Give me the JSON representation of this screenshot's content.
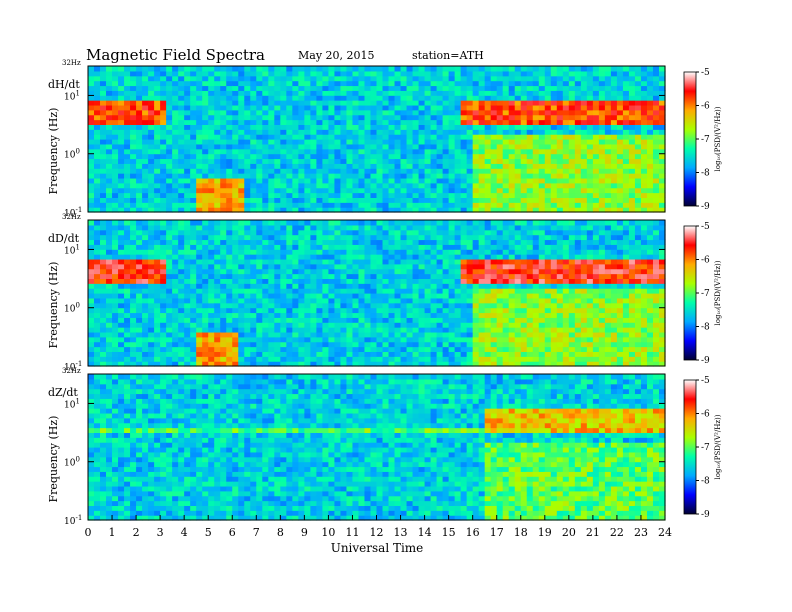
{
  "header": {
    "title": "Magnetic  Field  Spectra",
    "date": "May 20, 2015",
    "station": "station=ATH"
  },
  "chart_data": {
    "type": "heatmap",
    "x_axis": {
      "label": "Universal Time",
      "range": [
        0,
        24
      ],
      "ticks": [
        "0",
        "1",
        "2",
        "3",
        "4",
        "5",
        "6",
        "7",
        "8",
        "9",
        "10",
        "11",
        "12",
        "13",
        "14",
        "15",
        "16",
        "17",
        "18",
        "19",
        "20",
        "21",
        "22",
        "23",
        "24"
      ]
    },
    "y_axis": {
      "label": "Frequency  (Hz)",
      "scale": "log",
      "range": [
        0.1,
        32
      ],
      "top_label": "32Hz",
      "tick_labels": [
        {
          "base": "10",
          "exp": "1"
        },
        {
          "base": "10",
          "exp": "0"
        },
        {
          "base": "10",
          "exp": "-1"
        }
      ]
    },
    "colorbar": {
      "label": "log₁₀(PSD/(V²/Hz))",
      "range": [
        -9,
        -5
      ],
      "ticks": [
        "-5",
        "-6",
        "-7",
        "-8",
        "-9"
      ],
      "colors": [
        "#000033",
        "#0000ff",
        "#00aaff",
        "#00ffaa",
        "#aaff00",
        "#ffaa00",
        "#ff0000",
        "#ffffff"
      ]
    },
    "panels": [
      {
        "component": "dH/dt",
        "bands": [
          {
            "freq_range": [
              10,
              32
            ],
            "level": -8.6
          },
          {
            "freq_range": [
              3,
              8
            ],
            "time_ranges": [
              [
                0,
                3.2
              ],
              [
                15.6,
                24
              ]
            ],
            "level": -5.8
          },
          {
            "freq_range": [
              0.1,
              0.4
            ],
            "time_ranges": [
              [
                4.5,
                6.5
              ]
            ],
            "level": -6.2
          },
          {
            "freq_range": [
              0.1,
              2
            ],
            "time_ranges": [
              [
                16,
                24
              ]
            ],
            "level": -6.8
          }
        ]
      },
      {
        "component": "dD/dt",
        "bands": [
          {
            "freq_range": [
              10,
              32
            ],
            "level": -8.6
          },
          {
            "freq_range": [
              2.5,
              7
            ],
            "time_ranges": [
              [
                0,
                3.2
              ],
              [
                15.6,
                24
              ]
            ],
            "level": -5.6
          },
          {
            "freq_range": [
              0.1,
              0.4
            ],
            "time_ranges": [
              [
                4.5,
                6.2
              ]
            ],
            "level": -6.2
          },
          {
            "freq_range": [
              0.1,
              2
            ],
            "time_ranges": [
              [
                16,
                24
              ]
            ],
            "level": -6.8
          }
        ]
      },
      {
        "component": "dZ/dt",
        "bands": [
          {
            "freq_range": [
              10,
              32
            ],
            "level": -8.9
          },
          {
            "freq_range": [
              3,
              4
            ],
            "time_ranges": [
              [
                0,
                24
              ]
            ],
            "level": -7.0
          },
          {
            "freq_range": [
              3,
              8
            ],
            "time_ranges": [
              [
                16.5,
                24
              ]
            ],
            "level": -6.3
          },
          {
            "freq_range": [
              0.1,
              2
            ],
            "time_ranges": [
              [
                16.5,
                24
              ]
            ],
            "level": -7.0
          }
        ]
      }
    ]
  }
}
